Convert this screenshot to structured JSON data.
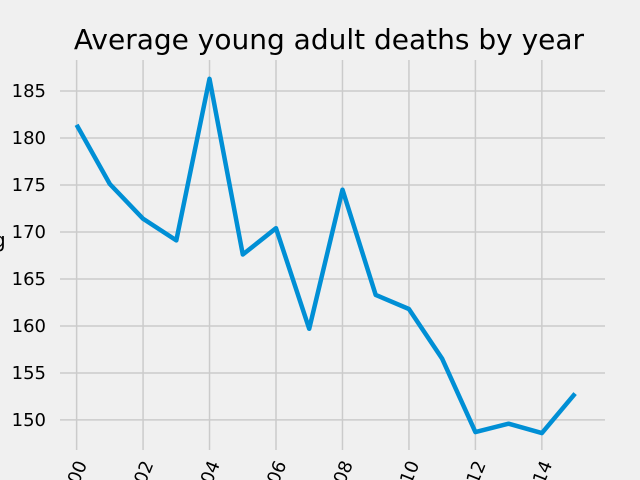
{
  "chart_data": {
    "type": "line",
    "title": "Average young adult deaths by year",
    "xlabel": "",
    "ylabel": "",
    "x": [
      2000,
      2001,
      2002,
      2003,
      2004,
      2005,
      2006,
      2007,
      2008,
      2009,
      2010,
      2011,
      2012,
      2013,
      2014,
      2015
    ],
    "x_tick_values": [
      2000,
      2002,
      2004,
      2006,
      2008,
      2010,
      2012,
      2014
    ],
    "x_tick_labels": [
      "00",
      "02",
      "04",
      "06",
      "08",
      "10",
      "12",
      "14"
    ],
    "xlim": [
      1999.5,
      2015.9
    ],
    "y_tick_values": [
      150,
      155,
      160,
      165,
      170,
      175,
      180,
      185
    ],
    "y_tick_labels": [
      "150",
      "155",
      "160",
      "165",
      "170",
      "175",
      "180",
      "185"
    ],
    "ylim": [
      146.8,
      188.3
    ],
    "grid": true,
    "series": [
      {
        "color": "#008fd5",
        "values": [
          181.4,
          175.1,
          171.4,
          169.1,
          186.3,
          167.6,
          170.4,
          159.7,
          174.5,
          163.3,
          161.8,
          156.5,
          148.7,
          149.6,
          148.6,
          152.8
        ]
      }
    ],
    "colors": {
      "background": "#f0f0f0",
      "grid": "#cbcbcb",
      "line": "#008fd5"
    }
  }
}
